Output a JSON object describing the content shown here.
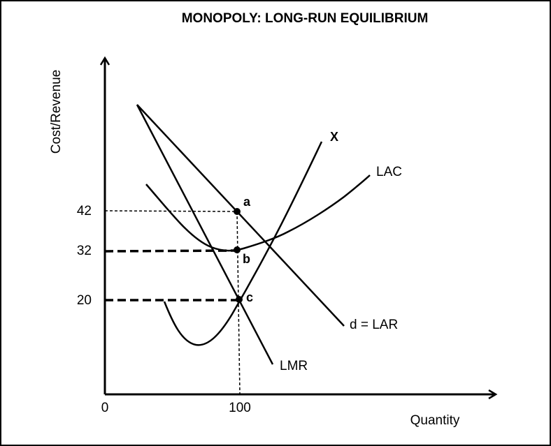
{
  "title": "MONOPOLY: LONG-RUN EQUILIBRIUM",
  "axes": {
    "y_label": "Cost/Revenue",
    "x_label": "Quantity",
    "origin_label": "0",
    "x_tick_label": "100",
    "y_tick_labels": [
      "42",
      "32",
      "20"
    ]
  },
  "curves": {
    "x_label": "X",
    "lac_label": "LAC",
    "demand_label": "d = LAR",
    "lmr_label": "LMR"
  },
  "points": {
    "a": "a",
    "b": "b",
    "c": "c"
  },
  "equilibrium": {
    "quantity": 100,
    "price": 42,
    "average_cost": 32,
    "marginal": 20
  }
}
